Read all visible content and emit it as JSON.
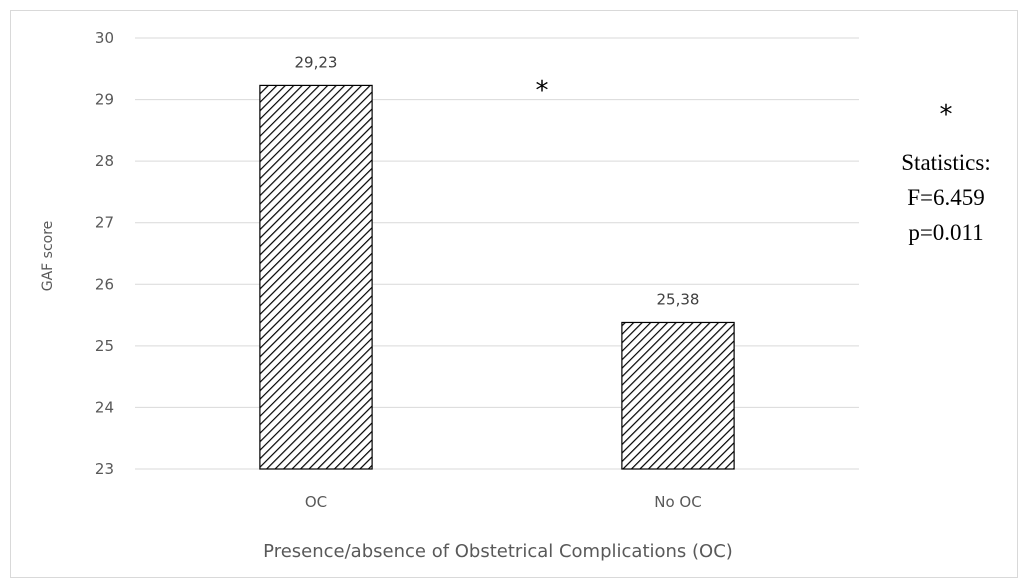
{
  "chart_data": {
    "type": "bar",
    "categories": [
      "OC",
      "No OC"
    ],
    "values": [
      29.23,
      25.38
    ],
    "data_labels": [
      "29,23",
      "25,38"
    ],
    "xlabel": "Presence/absence of Obstetrical Complications (OC)",
    "ylabel": "GAF score",
    "ylim": [
      23,
      30
    ],
    "y_ticks": [
      "23",
      "24",
      "25",
      "26",
      "27",
      "28",
      "29",
      "30"
    ],
    "grid": true,
    "bar_fill": "diagonal-hatch",
    "colors": {
      "bar_stroke": "#000000",
      "grid": "#d9d9d9",
      "text": "#595959"
    },
    "annotations": {
      "significance_marker": "*",
      "stats_marker": "*",
      "stats_lines": [
        "Statistics:",
        "F=6.459",
        "p=0.011"
      ]
    }
  }
}
